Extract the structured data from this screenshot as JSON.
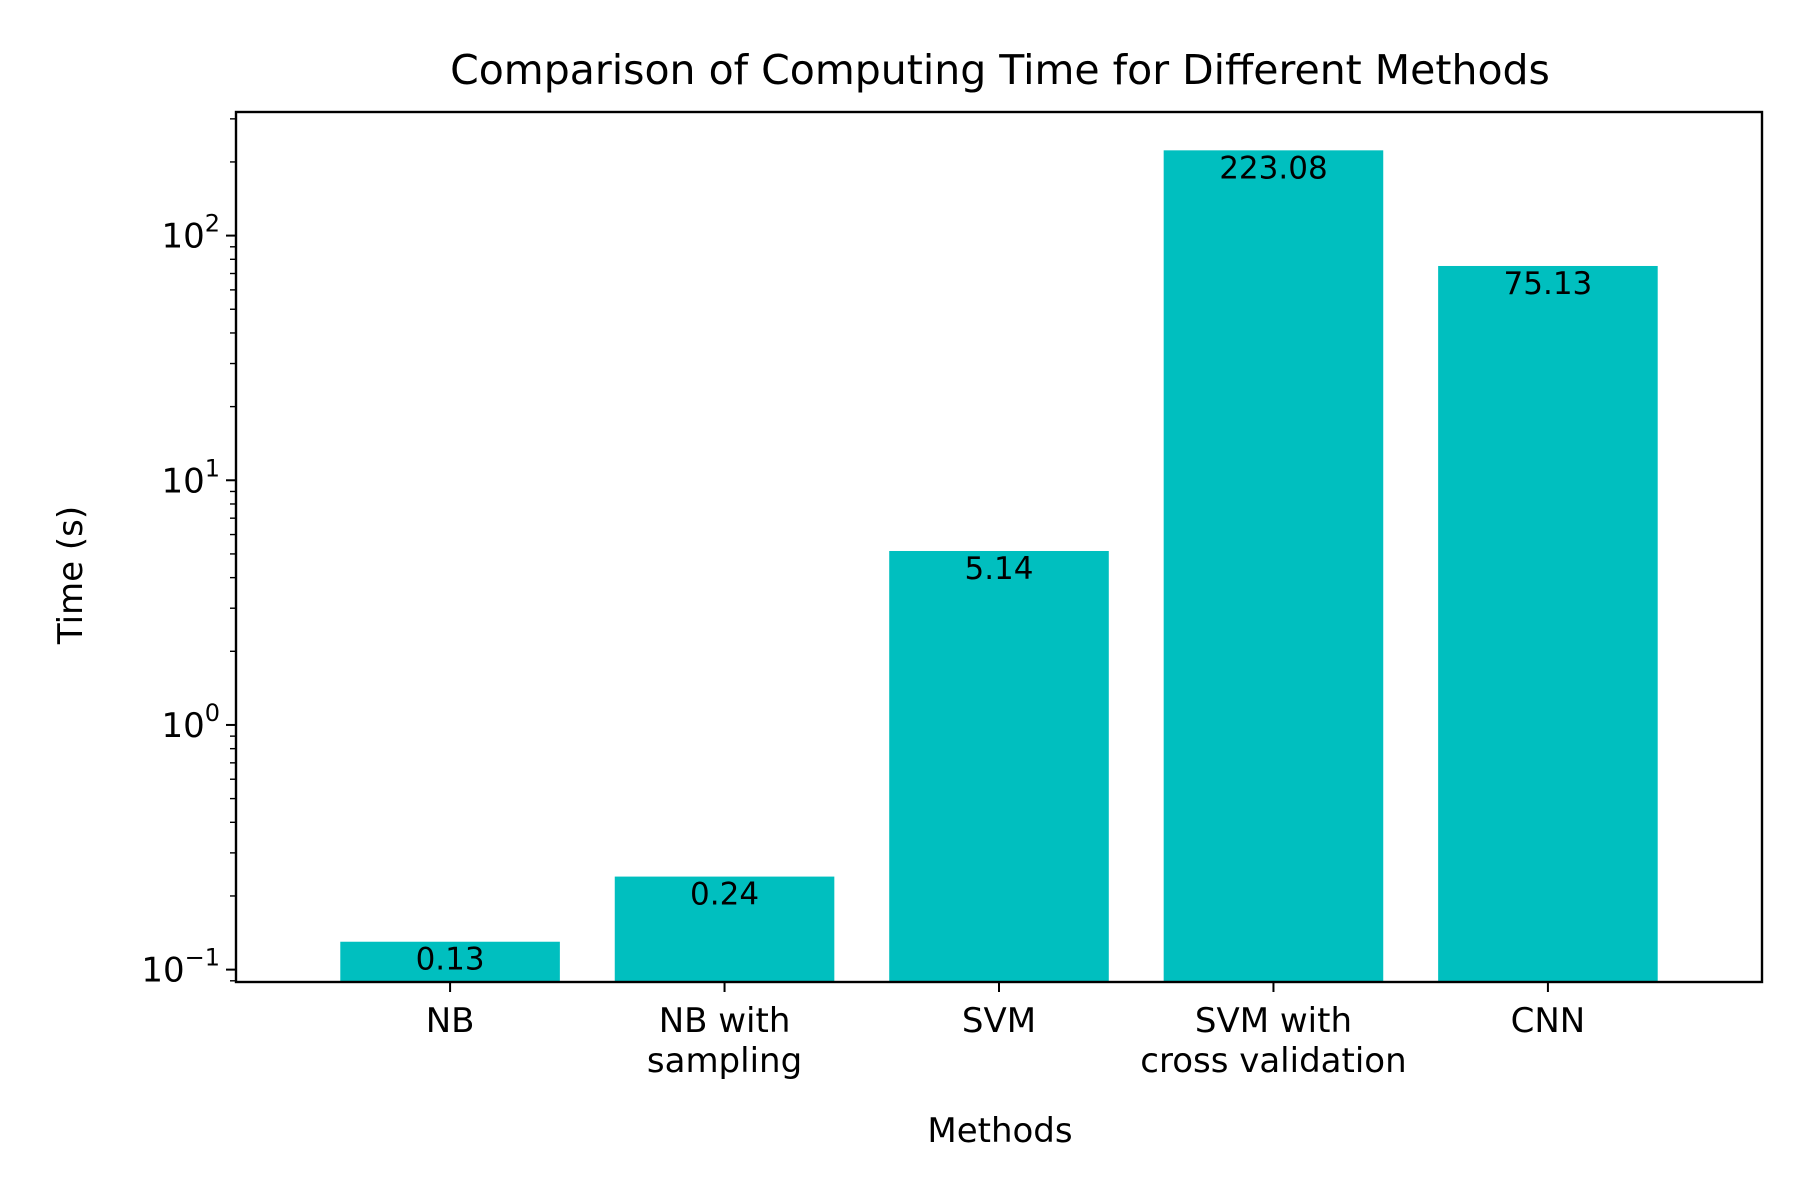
{
  "chart_data": {
    "type": "bar",
    "title": "Comparison of Computing Time for Different Methods",
    "xlabel": "Methods",
    "ylabel": "Time (s)",
    "yscale": "log",
    "ylim": [
      0.089,
      320
    ],
    "grid": false,
    "categories": [
      [
        "NB"
      ],
      [
        "NB with",
        "sampling"
      ],
      [
        "SVM"
      ],
      [
        "SVM with",
        "cross validation"
      ],
      [
        "CNN"
      ]
    ],
    "values": [
      0.13,
      0.24,
      5.14,
      223.08,
      75.13
    ],
    "data_labels": [
      "0.13",
      "0.24",
      "5.14",
      "223.08",
      "75.13"
    ],
    "yticks": [
      {
        "value": 0.1,
        "base": "10",
        "exp": "−1"
      },
      {
        "value": 1,
        "base": "10",
        "exp": "0"
      },
      {
        "value": 10,
        "base": "10",
        "exp": "1"
      },
      {
        "value": 100,
        "base": "10",
        "exp": "2"
      }
    ],
    "colors": {
      "bar": "#00bfbf",
      "axis": "#000000",
      "background": "#ffffff"
    }
  }
}
